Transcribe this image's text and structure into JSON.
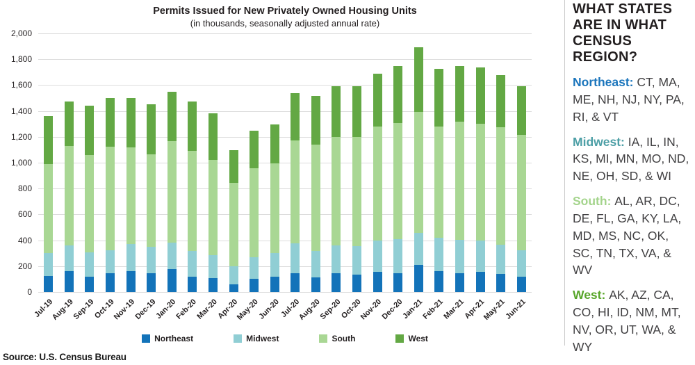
{
  "chart": {
    "title": "Permits Issued for New Privately Owned Housing Units",
    "subtitle": "(in thousands, seasonally adjusted annual rate)",
    "source": "Source: U.S. Census Bureau"
  },
  "chart_data": {
    "type": "bar",
    "stacked": true,
    "title": "Permits Issued for New Privately Owned Housing Units",
    "subtitle": "(in thousands, seasonally adjusted annual rate)",
    "categories": [
      "Jul-19",
      "Aug-19",
      "Sep-19",
      "Oct-19",
      "Nov-19",
      "Dec-19",
      "Jan-20",
      "Feb-20",
      "Mar-20",
      "Apr-20",
      "May-20",
      "Jun-20",
      "Jul-20",
      "Aug-20",
      "Sep-20",
      "Oct-20",
      "Nov-20",
      "Dec-20",
      "Jan-21",
      "Feb-21",
      "Mar-21",
      "Apr-21",
      "May-21",
      "Jun-21"
    ],
    "series": [
      {
        "name": "Northeast",
        "color": "#1373b9",
        "values": [
          125,
          160,
          120,
          145,
          160,
          145,
          175,
          120,
          110,
          60,
          100,
          120,
          145,
          115,
          145,
          135,
          155,
          145,
          210,
          160,
          145,
          155,
          140,
          120
        ]
      },
      {
        "name": "Midwest",
        "color": "#90ced4",
        "values": [
          175,
          200,
          185,
          180,
          210,
          205,
          205,
          200,
          175,
          140,
          170,
          180,
          230,
          205,
          215,
          220,
          245,
          265,
          245,
          260,
          260,
          245,
          225,
          205
        ]
      },
      {
        "name": "South",
        "color": "#a9d794",
        "values": [
          690,
          770,
          755,
          800,
          750,
          715,
          785,
          770,
          735,
          645,
          685,
          695,
          795,
          820,
          840,
          845,
          880,
          895,
          935,
          860,
          910,
          900,
          910,
          890
        ]
      },
      {
        "name": "West",
        "color": "#63a844",
        "values": [
          370,
          345,
          380,
          375,
          380,
          385,
          385,
          385,
          360,
          250,
          290,
          300,
          370,
          375,
          390,
          390,
          410,
          445,
          500,
          445,
          435,
          435,
          405,
          375
        ]
      }
    ],
    "ylabel": "",
    "xlabel": "",
    "ylim": [
      0,
      2000
    ],
    "ytick_step": 200,
    "grid": true,
    "legend_position": "bottom"
  },
  "sidebar": {
    "heading": "WHAT STATES ARE IN WHAT CENSUS REGION?",
    "regions": [
      {
        "name": "Northeast:",
        "color": "#1b75bc",
        "states": "CT, MA, ME, NH, NJ, NY, PA, RI, & VT"
      },
      {
        "name": "Midwest:",
        "color": "#4d9fa6",
        "states": "IA, IL, IN, KS, MI, MN, MO, ND, NE, OH, SD, & WI"
      },
      {
        "name": "South:",
        "color": "#a4d48c",
        "states": "AL, AR, DC, DE, FL, GA, KY, LA, MD, MS, NC, OK, SC, TN, TX, VA, & WV"
      },
      {
        "name": "West:",
        "color": "#58a62a",
        "states": "AK, AZ, CA, CO, HI, ID, NM, MT, NV, OR, UT, WA, & WY"
      }
    ]
  }
}
